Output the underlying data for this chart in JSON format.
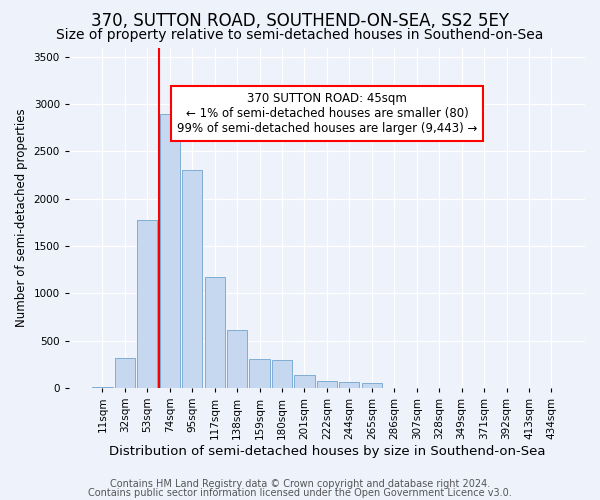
{
  "title": "370, SUTTON ROAD, SOUTHEND-ON-SEA, SS2 5EY",
  "subtitle": "Size of property relative to semi-detached houses in Southend-on-Sea",
  "xlabel": "Distribution of semi-detached houses by size in Southend-on-Sea",
  "ylabel": "Number of semi-detached properties",
  "categories": [
    "11sqm",
    "32sqm",
    "53sqm",
    "74sqm",
    "95sqm",
    "117sqm",
    "138sqm",
    "159sqm",
    "180sqm",
    "201sqm",
    "222sqm",
    "244sqm",
    "265sqm",
    "286sqm",
    "307sqm",
    "328sqm",
    "349sqm",
    "371sqm",
    "392sqm",
    "413sqm",
    "434sqm"
  ],
  "values": [
    5,
    315,
    1780,
    2900,
    2300,
    1170,
    610,
    300,
    295,
    140,
    75,
    65,
    55,
    0,
    0,
    0,
    0,
    0,
    0,
    0,
    0
  ],
  "bar_color": "#c5d8f0",
  "bar_edge_color": "#7eadd4",
  "vline_color": "red",
  "vline_position": 2.5,
  "annotation_text": "370 SUTTON ROAD: 45sqm\n← 1% of semi-detached houses are smaller (80)\n99% of semi-detached houses are larger (9,443) →",
  "ylim": [
    0,
    3600
  ],
  "yticks": [
    0,
    500,
    1000,
    1500,
    2000,
    2500,
    3000,
    3500
  ],
  "footer1": "Contains HM Land Registry data © Crown copyright and database right 2024.",
  "footer2": "Contains public sector information licensed under the Open Government Licence v3.0.",
  "bg_color": "#eef2fb",
  "plot_bg_color": "#eef2fb",
  "title_fontsize": 12,
  "subtitle_fontsize": 10,
  "xlabel_fontsize": 9.5,
  "ylabel_fontsize": 8.5,
  "tick_fontsize": 7.5,
  "footer_fontsize": 7,
  "annotation_fontsize": 8.5
}
